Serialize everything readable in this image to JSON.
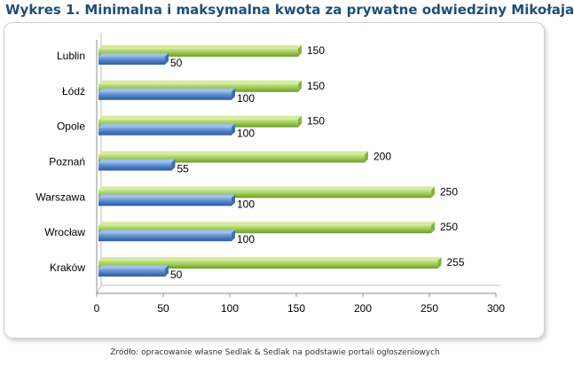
{
  "title": "Wykres 1. Minimalna i maksymalna kwota za prywatne odwiedziny Mikołaja",
  "source": "Źródło: opracowanie własne Sedlak & Sedlak na podstawie portali ogłoszeniowych",
  "colors": {
    "max": "#9bc94f",
    "min": "#4f81c7",
    "title": "#1f4e79"
  },
  "chart_data": {
    "type": "bar",
    "orientation": "horizontal",
    "style": "3d",
    "categories": [
      "Lublin",
      "Łódź",
      "Opole",
      "Poznań",
      "Warszawa",
      "Wrocław",
      "Kraków"
    ],
    "series": [
      {
        "values": [
          150,
          150,
          150,
          200,
          250,
          250,
          255
        ]
      },
      {
        "values": [
          50,
          100,
          100,
          55,
          100,
          100,
          50
        ]
      }
    ],
    "xlim": [
      0,
      300
    ],
    "xticks": [
      0,
      50,
      100,
      150,
      200,
      250,
      300
    ],
    "data_labels": true,
    "grid": false,
    "legend": "none"
  }
}
